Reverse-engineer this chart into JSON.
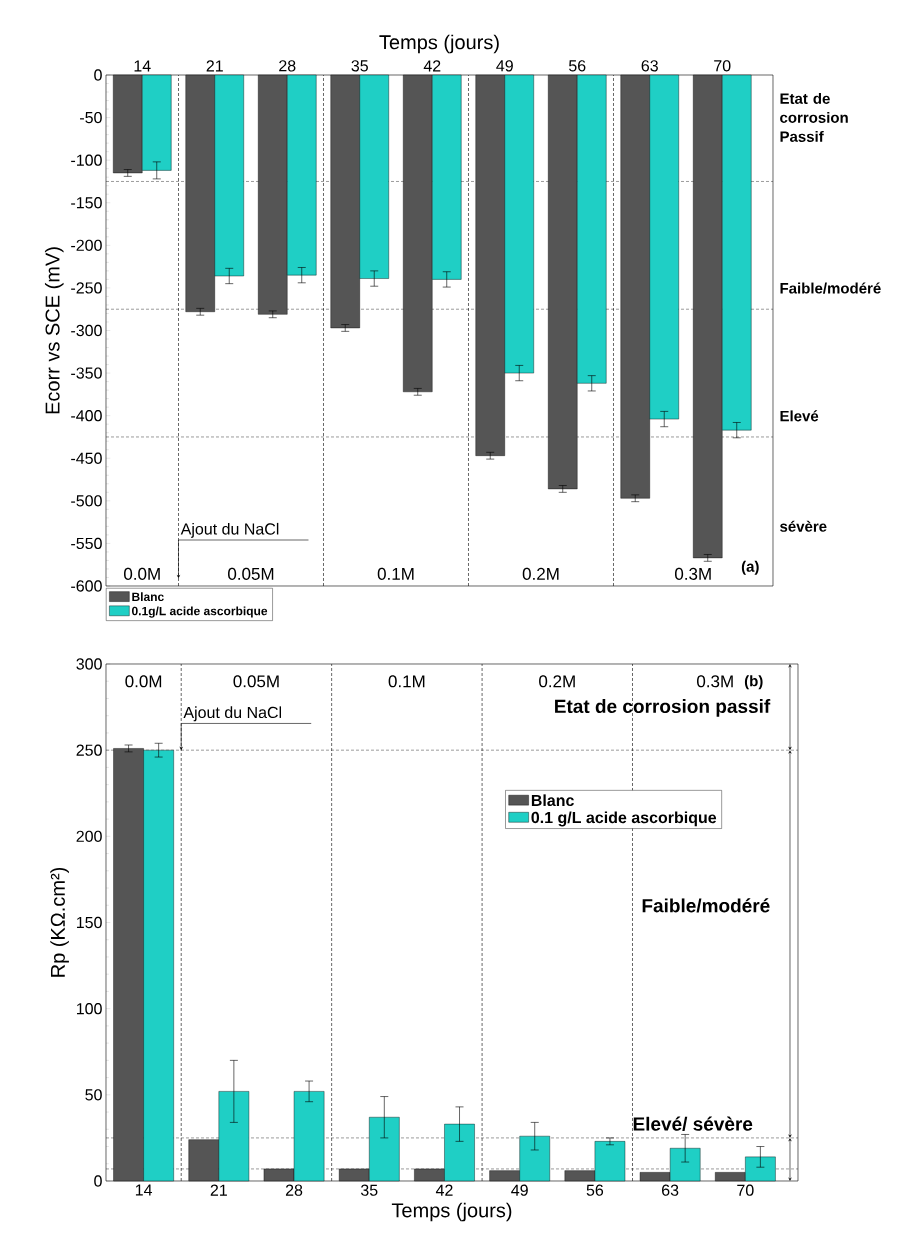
{
  "chart_data": [
    {
      "type": "bar",
      "xlabel": "Temps (jours)",
      "ylabel": "Ecorr vs SCE (mV)",
      "categories": [
        "14",
        "21",
        "28",
        "35",
        "42",
        "49",
        "56",
        "63",
        "70"
      ],
      "ylim": [
        -600,
        0
      ],
      "yticks": [
        -600,
        -550,
        -500,
        -450,
        -400,
        -350,
        -300,
        -250,
        -200,
        -150,
        -100,
        -50,
        0
      ],
      "legend": "bottom left",
      "series": [
        {
          "name": "Blanc",
          "color": "#555555",
          "values": [
            -115,
            -278,
            -281,
            -297,
            -372,
            -447,
            -486,
            -497,
            -567
          ],
          "errors": [
            4,
            4,
            4,
            4,
            4,
            4,
            4,
            4,
            4
          ]
        },
        {
          "name": "0.1g/L acide ascorbique",
          "color": "#1fcfc5",
          "values": [
            -112,
            -236,
            -235,
            -239,
            -240,
            -350,
            -362,
            -404,
            -417
          ],
          "errors": [
            10,
            9,
            9,
            9,
            9,
            9,
            9,
            9,
            9
          ]
        }
      ],
      "ref_lines": [
        {
          "axis": "y",
          "value": -125,
          "line_style": "dashed"
        },
        {
          "axis": "y",
          "value": -275,
          "line_style": "dashed"
        },
        {
          "axis": "y",
          "value": -425,
          "line_style": "dashed"
        }
      ],
      "annotations": [
        "Etat de corrosion Passif",
        "Faible/modéré",
        "Elevé",
        "sévère",
        "0.0M",
        "0.05M",
        "0.1M",
        "0.2M",
        "0.3M",
        "Ajout du NaCl",
        "(a)"
      ]
    },
    {
      "type": "bar",
      "xlabel": "Temps (jours)",
      "ylabel": "Rp (KΩ.cm²)",
      "categories": [
        "14",
        "21",
        "28",
        "35",
        "42",
        "49",
        "56",
        "63",
        "70"
      ],
      "ylim": [
        0,
        300
      ],
      "yticks": [
        0,
        50,
        100,
        150,
        200,
        250,
        300
      ],
      "legend": "top right",
      "series": [
        {
          "name": "Blanc",
          "color": "#555555",
          "values": [
            251,
            24,
            7,
            7,
            7,
            6,
            6,
            5,
            5
          ],
          "errors": [
            2,
            null,
            null,
            null,
            null,
            null,
            null,
            null,
            null
          ]
        },
        {
          "name": "0.1 g/L acide ascorbique",
          "color": "#1fcfc5",
          "values": [
            250,
            52,
            52,
            37,
            33,
            26,
            23,
            19,
            14
          ],
          "errors": [
            4,
            18,
            6,
            12,
            10,
            8,
            2,
            8,
            6
          ]
        }
      ],
      "ref_lines": [
        {
          "axis": "y",
          "value": 250,
          "line_style": "dashed"
        },
        {
          "axis": "y",
          "value": 25,
          "line_style": "dashed"
        },
        {
          "axis": "y",
          "value": 7,
          "line_style": "dashed"
        }
      ],
      "annotations": [
        "Etat de corrosion passif",
        "Faible/modéré",
        "Elevé/ sévère",
        "0.0M",
        "0.05M",
        "0.1M",
        "0.2M",
        "0.3M",
        {
          "text": "Ajout du NaCl",
          "y": 250
        },
        "(b)"
      ]
    }
  ]
}
